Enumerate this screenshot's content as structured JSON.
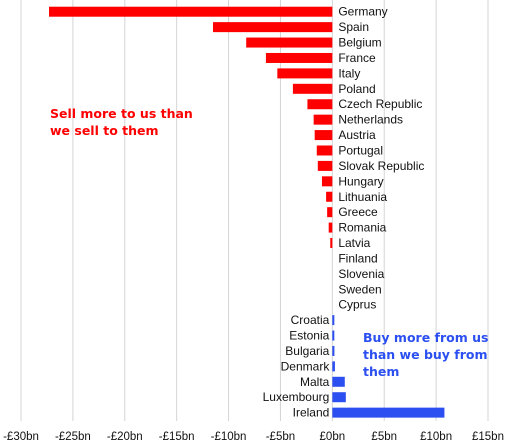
{
  "chart_data": {
    "type": "bar",
    "orientation": "horizontal",
    "categories": [
      "Germany",
      "Spain",
      "Belgium",
      "France",
      "Italy",
      "Poland",
      "Czech Republic",
      "Netherlands",
      "Austria",
      "Portugal",
      "Slovak Republic",
      "Hungary",
      "Lithuania",
      "Greece",
      "Romania",
      "Latvia",
      "Finland",
      "Slovenia",
      "Sweden",
      "Cyprus",
      "Croatia",
      "Estonia",
      "Bulgaria",
      "Denmark",
      "Malta",
      "Luxembourg",
      "Ireland"
    ],
    "values": [
      -27.3,
      -11.5,
      -8.3,
      -6.4,
      -5.3,
      -3.8,
      -2.4,
      -1.8,
      -1.7,
      -1.5,
      -1.4,
      -1.0,
      -0.6,
      -0.5,
      -0.35,
      -0.2,
      0,
      0,
      0,
      0,
      0.15,
      0.15,
      0.2,
      0.25,
      1.2,
      1.3,
      10.8
    ],
    "xlim": [
      -30,
      15
    ],
    "xticks": [
      -30,
      -25,
      -20,
      -15,
      -10,
      -5,
      0,
      5,
      10,
      15
    ],
    "xtick_labels": [
      "-£30bn",
      "-£25bn",
      "-£20bn",
      "-£15bn",
      "-£10bn",
      "-£5bn",
      "£0bn",
      "£5bn",
      "£10bn",
      "£15bn"
    ],
    "grid": true,
    "colors": {
      "negative": "#ff0000",
      "positive": "#2b4ff0",
      "grid": "#d4d4d4"
    },
    "annotations": [
      {
        "lines": [
          "Sell more to us than",
          "we sell to them"
        ],
        "color": "#ff0000"
      },
      {
        "lines": [
          "Buy more from us",
          "than we buy from",
          "them"
        ],
        "color": "#2b4ff0"
      }
    ]
  }
}
